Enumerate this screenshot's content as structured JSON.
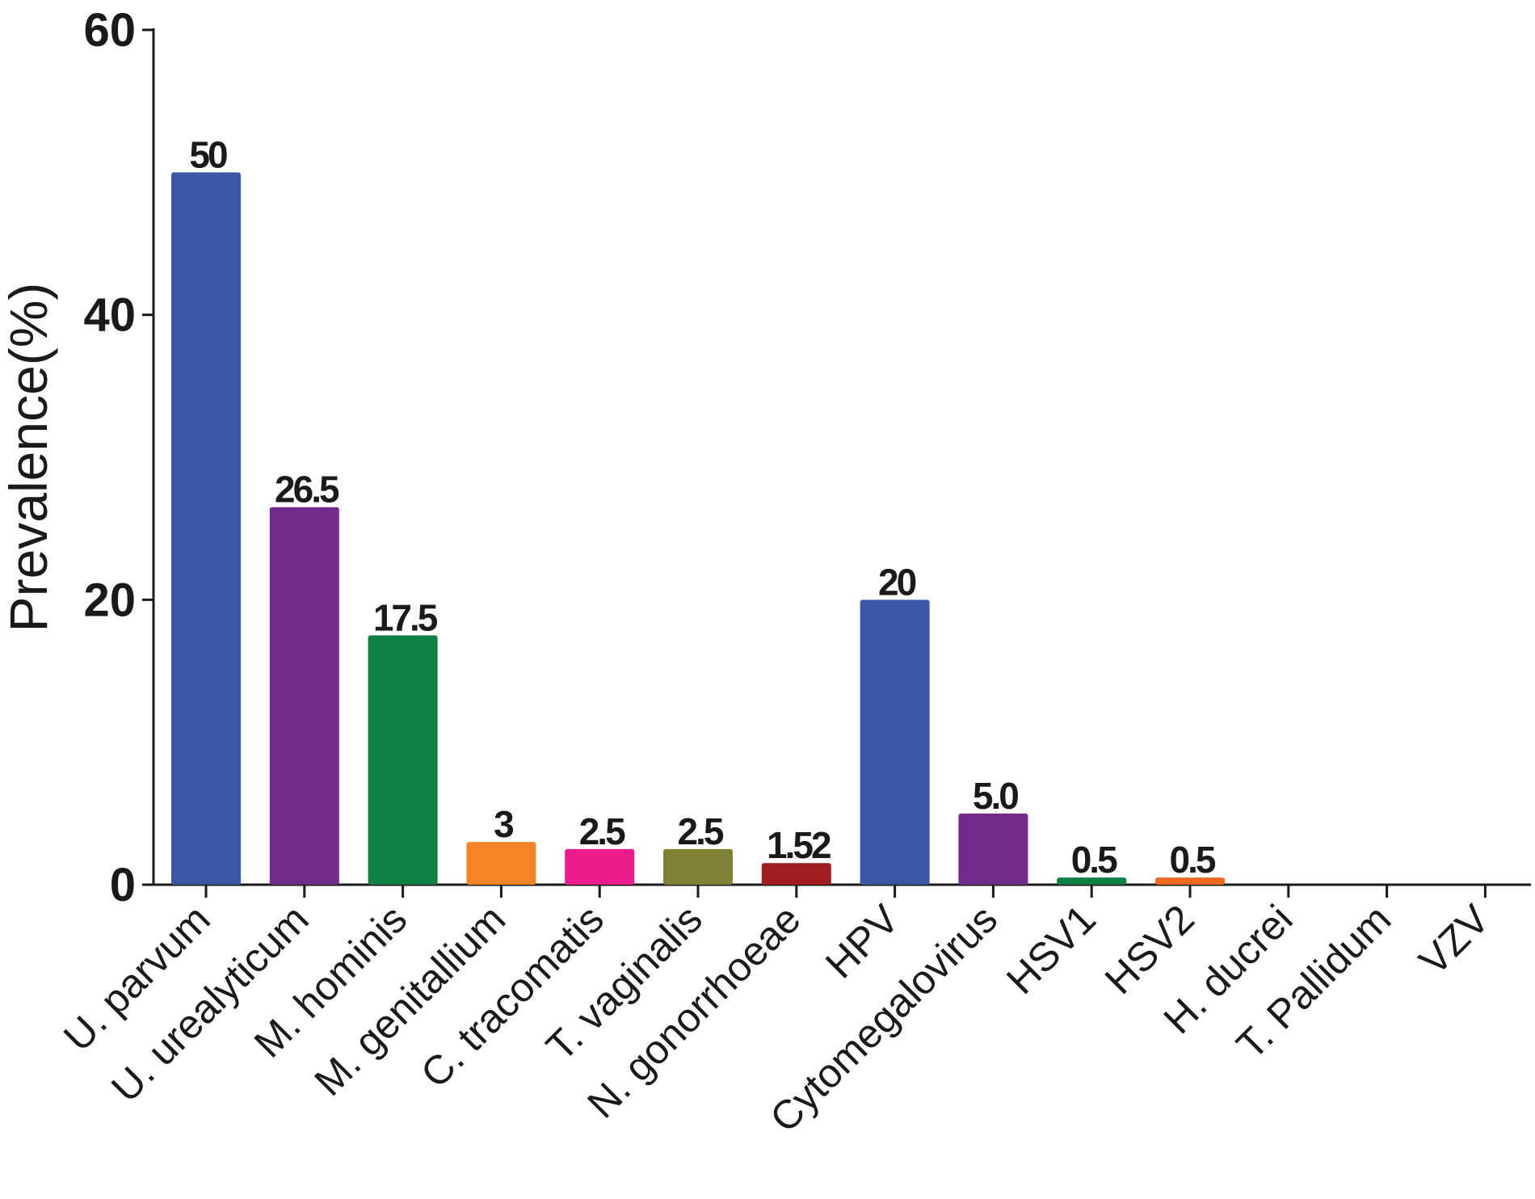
{
  "chart_data": {
    "type": "bar",
    "title": "",
    "xlabel": "",
    "ylabel": "Prevalence(%)",
    "ylim": [
      0,
      60
    ],
    "yticks": [
      0,
      20,
      40,
      60
    ],
    "grid": false,
    "categories": [
      "U. parvum",
      "U. urealyticum",
      "M. hominis",
      "M. genitallium",
      "C. tracomatis",
      "T. vaginalis",
      "N. gonorrhoeae",
      "HPV",
      "Cytomegalovirus",
      "HSV1",
      "HSV2",
      "H. ducrei",
      "T. Pallidum",
      "VZV"
    ],
    "values": [
      50,
      26.5,
      17.5,
      3,
      2.5,
      2.5,
      1.52,
      20,
      5.0,
      0.5,
      0.5,
      0,
      0,
      0
    ],
    "data_labels": [
      "50",
      "26.5",
      "17.5",
      "3",
      "2.5",
      "2.5",
      "1.52",
      "20",
      "5.0",
      "0.5",
      "0.5",
      "",
      "",
      ""
    ],
    "colors": [
      "#3a56a5",
      "#722a8c",
      "#0f8043",
      "#f58424",
      "#ec1b8c",
      "#7f8234",
      "#a01c21",
      "#3a56a5",
      "#722a8c",
      "#0f8043",
      "#f26a22",
      "#000000",
      "#000000",
      "#000000"
    ]
  }
}
